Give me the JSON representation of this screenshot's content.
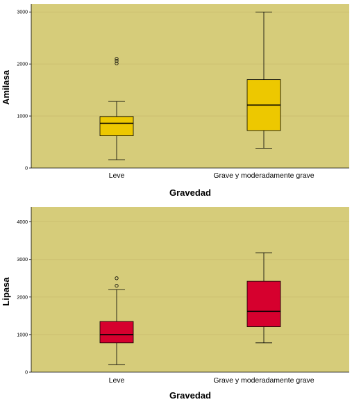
{
  "colors": {
    "plot_background": "#d6cc7a",
    "amilasa_box": "#edc800",
    "lipasa_box": "#d6002e"
  },
  "chart_data": [
    {
      "type": "boxplot",
      "title": "",
      "xlabel": "Gravedad",
      "ylabel": "Amilasa",
      "ylim": [
        0,
        3150
      ],
      "yticks": [
        0,
        1000,
        2000,
        3000
      ],
      "ytick_labels": [
        "0",
        "1000",
        "2000",
        "3000"
      ],
      "grid": true,
      "categories": [
        "Leve",
        "Grave y moderadamente grave"
      ],
      "boxes": [
        {
          "category": "Leve",
          "min": 160,
          "q1": 620,
          "median": 860,
          "q3": 990,
          "max": 1280,
          "outliers": [
            2010,
            2060,
            2100
          ]
        },
        {
          "category": "Grave y moderadamente grave",
          "min": 380,
          "q1": 720,
          "median": 1210,
          "q3": 1700,
          "max": 3000,
          "outliers": []
        }
      ]
    },
    {
      "type": "boxplot",
      "title": "",
      "xlabel": "Gravedad",
      "ylabel": "Lipasa",
      "ylim": [
        0,
        4400
      ],
      "yticks": [
        0,
        1000,
        2000,
        3000,
        4000
      ],
      "ytick_labels": [
        "0",
        "1000",
        "2000",
        "3000",
        "4000"
      ],
      "grid": true,
      "categories": [
        "Leve",
        "Grave y moderadamente grave"
      ],
      "boxes": [
        {
          "category": "Leve",
          "min": 200,
          "q1": 780,
          "median": 1000,
          "q3": 1350,
          "max": 2200,
          "outliers": [
            2300,
            2500
          ]
        },
        {
          "category": "Grave y moderadamente grave",
          "min": 780,
          "q1": 1210,
          "median": 1620,
          "q3": 2420,
          "max": 3180,
          "outliers": []
        }
      ]
    }
  ]
}
